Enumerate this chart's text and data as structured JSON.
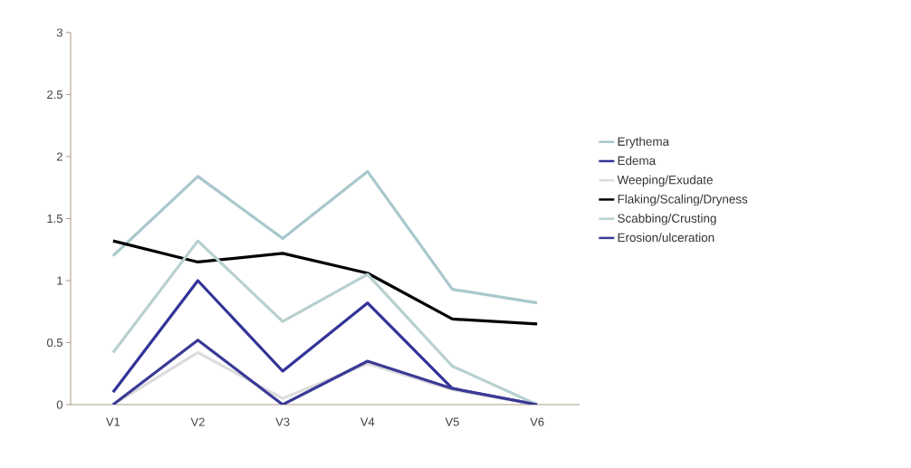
{
  "chart_data": {
    "type": "line",
    "categories": [
      "V1",
      "V2",
      "V3",
      "V4",
      "V5",
      "V6"
    ],
    "series": [
      {
        "name": "Erythema",
        "color": "#a8c8cc",
        "values": [
          1.2,
          1.84,
          1.34,
          1.88,
          0.93,
          0.82
        ]
      },
      {
        "name": "Edema",
        "color": "#333399",
        "values": [
          0.1,
          1.0,
          0.27,
          0.82,
          0.13,
          0
        ]
      },
      {
        "name": "Weeping/Exudate",
        "color": "#dcdcdc",
        "values": [
          0,
          0.42,
          0.05,
          0.33,
          0.12,
          0
        ]
      },
      {
        "name": "Flaking/Scaling/Dryness",
        "color": "#000000",
        "values": [
          1.32,
          1.15,
          1.22,
          1.06,
          0.69,
          0.65
        ]
      },
      {
        "name": "Scabbing/Crusting",
        "color": "#b8d0d0",
        "values": [
          0.42,
          1.32,
          0.67,
          1.05,
          0.31,
          0
        ]
      },
      {
        "name": "Erosion/ulceration",
        "color": "#3a3a96",
        "values": [
          0,
          0.52,
          0,
          0.35,
          0.13,
          0
        ]
      }
    ],
    "ylim": [
      0,
      3
    ],
    "yticks": [
      0,
      0.5,
      1,
      1.5,
      2,
      2.5,
      3
    ],
    "grid": false,
    "legend": "right",
    "marker": "none",
    "line_style": "solid"
  }
}
